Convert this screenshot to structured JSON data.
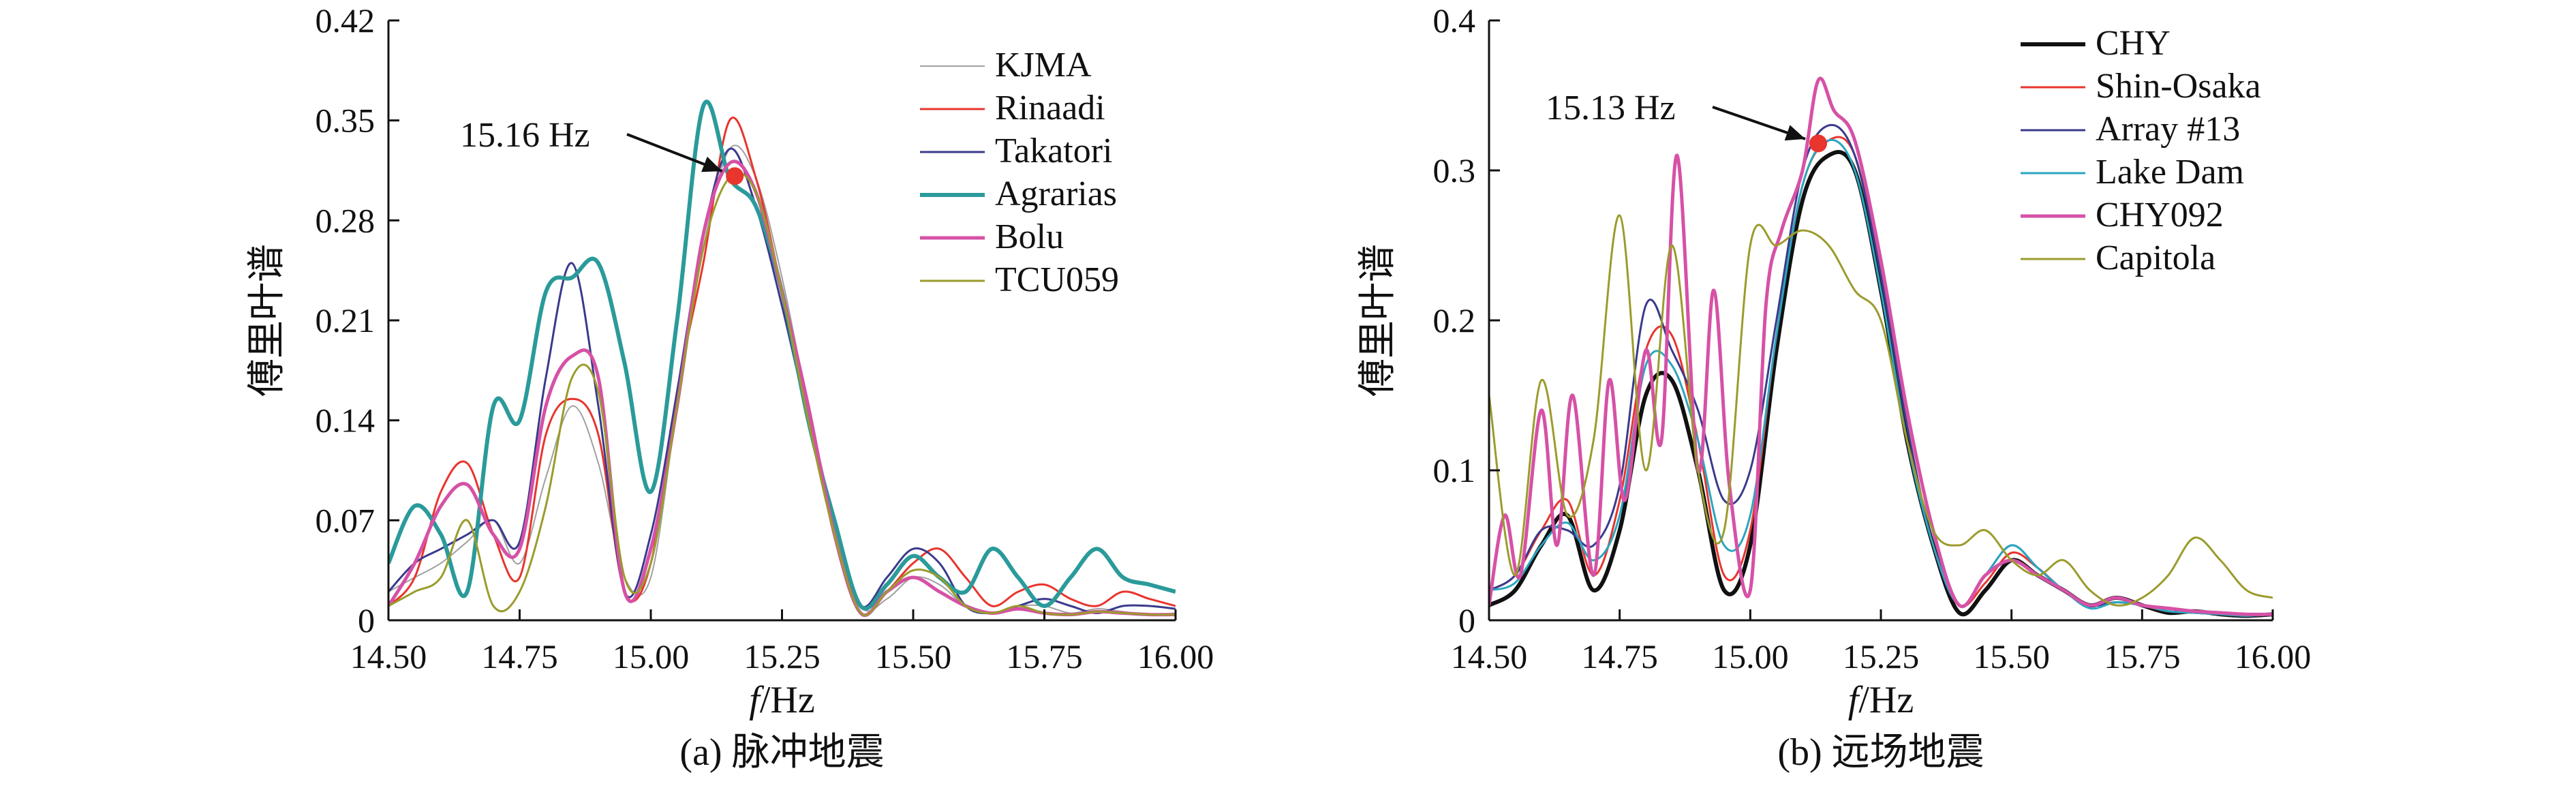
{
  "chart_data": [
    {
      "type": "line",
      "caption": "(a) 脉冲地震",
      "xlabel_italic": "f",
      "xlabel_unit": "/Hz",
      "ylabel": "傅里叶谱",
      "xlim": [
        14.5,
        16.0
      ],
      "ylim": [
        0,
        0.42
      ],
      "xticks": [
        "14.50",
        "14.75",
        "15.00",
        "15.25",
        "15.50",
        "15.75",
        "16.00"
      ],
      "yticks": [
        "0",
        "0.07",
        "0.14",
        "0.21",
        "0.28",
        "0.35",
        "0.42"
      ],
      "legend_position": "top-right",
      "annotation": {
        "text": "15.16 Hz",
        "x": 15.16,
        "y": 0.311
      },
      "series": [
        {
          "name": "KJMA",
          "color": "#a0a0a0",
          "width": 2,
          "x": [
            14.5,
            14.55,
            14.6,
            14.65,
            14.7,
            14.75,
            14.8,
            14.85,
            14.9,
            14.95,
            15.0,
            15.05,
            15.1,
            15.15,
            15.2,
            15.25,
            15.3,
            15.35,
            15.4,
            15.45,
            15.5,
            15.55,
            15.6,
            15.65,
            15.7,
            15.75,
            15.8,
            15.85,
            15.9,
            15.95,
            16.0
          ],
          "y": [
            0.02,
            0.03,
            0.04,
            0.055,
            0.07,
            0.04,
            0.1,
            0.15,
            0.11,
            0.03,
            0.03,
            0.15,
            0.26,
            0.33,
            0.31,
            0.24,
            0.15,
            0.07,
            0.01,
            0.015,
            0.03,
            0.025,
            0.01,
            0.005,
            0.01,
            0.01,
            0.005,
            0.008,
            0.006,
            0.004,
            0.005
          ]
        },
        {
          "name": "Rinaadi",
          "color": "#e8352e",
          "width": 3,
          "x": [
            14.5,
            14.55,
            14.6,
            14.65,
            14.7,
            14.75,
            14.8,
            14.85,
            14.9,
            14.95,
            15.0,
            15.05,
            15.1,
            15.15,
            15.2,
            15.25,
            15.3,
            15.35,
            15.4,
            15.45,
            15.5,
            15.55,
            15.6,
            15.65,
            15.7,
            15.75,
            15.8,
            15.85,
            15.9,
            15.95,
            16.0
          ],
          "y": [
            0.01,
            0.03,
            0.09,
            0.11,
            0.06,
            0.03,
            0.13,
            0.155,
            0.13,
            0.02,
            0.04,
            0.16,
            0.25,
            0.35,
            0.31,
            0.23,
            0.14,
            0.06,
            0.005,
            0.02,
            0.04,
            0.05,
            0.03,
            0.01,
            0.02,
            0.025,
            0.015,
            0.01,
            0.02,
            0.015,
            0.01
          ]
        },
        {
          "name": "Takatori",
          "color": "#3a3a8c",
          "width": 3,
          "x": [
            14.5,
            14.55,
            14.6,
            14.65,
            14.7,
            14.75,
            14.8,
            14.85,
            14.9,
            14.95,
            15.0,
            15.05,
            15.1,
            15.15,
            15.2,
            15.25,
            15.3,
            15.35,
            15.4,
            15.45,
            15.5,
            15.55,
            15.6,
            15.65,
            15.7,
            15.75,
            15.8,
            15.85,
            15.9,
            15.95,
            16.0
          ],
          "y": [
            0.02,
            0.04,
            0.05,
            0.06,
            0.07,
            0.055,
            0.17,
            0.25,
            0.15,
            0.02,
            0.06,
            0.16,
            0.27,
            0.33,
            0.29,
            0.22,
            0.14,
            0.06,
            0.01,
            0.03,
            0.05,
            0.04,
            0.01,
            0.005,
            0.01,
            0.015,
            0.01,
            0.005,
            0.01,
            0.01,
            0.008
          ]
        },
        {
          "name": "Agrarias",
          "color": "#2b9a9a",
          "width": 6,
          "x": [
            14.5,
            14.55,
            14.6,
            14.65,
            14.7,
            14.75,
            14.8,
            14.85,
            14.9,
            14.95,
            15.0,
            15.05,
            15.1,
            15.15,
            15.2,
            15.25,
            15.3,
            15.35,
            15.4,
            15.45,
            15.5,
            15.55,
            15.6,
            15.65,
            15.7,
            15.75,
            15.8,
            15.85,
            15.9,
            15.95,
            16.0
          ],
          "y": [
            0.04,
            0.08,
            0.06,
            0.02,
            0.15,
            0.14,
            0.23,
            0.24,
            0.25,
            0.18,
            0.09,
            0.21,
            0.36,
            0.31,
            0.29,
            0.23,
            0.14,
            0.07,
            0.01,
            0.025,
            0.045,
            0.03,
            0.02,
            0.05,
            0.03,
            0.01,
            0.03,
            0.05,
            0.03,
            0.025,
            0.02
          ]
        },
        {
          "name": "Bolu",
          "color": "#d651a6",
          "width": 5,
          "x": [
            14.5,
            14.55,
            14.6,
            14.65,
            14.7,
            14.75,
            14.8,
            14.85,
            14.9,
            14.95,
            15.0,
            15.05,
            15.1,
            15.15,
            15.2,
            15.25,
            15.3,
            15.35,
            15.4,
            15.45,
            15.5,
            15.55,
            15.6,
            15.65,
            15.7,
            15.75,
            15.8,
            15.85,
            15.9,
            15.95,
            16.0
          ],
          "y": [
            0.01,
            0.04,
            0.08,
            0.095,
            0.06,
            0.05,
            0.15,
            0.185,
            0.17,
            0.02,
            0.05,
            0.15,
            0.27,
            0.32,
            0.3,
            0.23,
            0.15,
            0.06,
            0.005,
            0.02,
            0.03,
            0.02,
            0.01,
            0.005,
            0.008,
            0.005,
            0.004,
            0.006,
            0.005,
            0.004,
            0.004
          ]
        },
        {
          "name": "TCU059",
          "color": "#9b9b2c",
          "width": 3,
          "x": [
            14.5,
            14.55,
            14.6,
            14.65,
            14.7,
            14.75,
            14.8,
            14.85,
            14.9,
            14.95,
            15.0,
            15.05,
            15.1,
            15.15,
            15.2,
            15.25,
            15.3,
            15.35,
            15.4,
            15.45,
            15.5,
            15.55,
            15.6,
            15.65,
            15.7,
            15.75,
            15.8,
            15.85,
            15.9,
            15.95,
            16.0
          ],
          "y": [
            0.01,
            0.02,
            0.03,
            0.07,
            0.01,
            0.02,
            0.08,
            0.17,
            0.16,
            0.03,
            0.04,
            0.15,
            0.26,
            0.31,
            0.3,
            0.23,
            0.14,
            0.06,
            0.005,
            0.02,
            0.035,
            0.03,
            0.01,
            0.005,
            0.01,
            0.005,
            0.004,
            0.006,
            0.005,
            0.004,
            0.004
          ]
        }
      ]
    },
    {
      "type": "line",
      "caption": "(b) 远场地震",
      "xlabel_italic": "f",
      "xlabel_unit": "/Hz",
      "ylabel": "傅里叶谱",
      "xlim": [
        14.5,
        16.0
      ],
      "ylim": [
        0,
        0.4
      ],
      "xticks": [
        "14.50",
        "14.75",
        "15.00",
        "15.25",
        "15.50",
        "15.75",
        "16.00"
      ],
      "yticks": [
        "0",
        "0.1",
        "0.2",
        "0.3",
        "0.4"
      ],
      "legend_position": "top-right",
      "annotation": {
        "text": "15.13 Hz",
        "x": 15.13,
        "y": 0.318
      },
      "series": [
        {
          "name": "CHY",
          "color": "#111111",
          "width": 6,
          "x": [
            14.5,
            14.55,
            14.6,
            14.65,
            14.7,
            14.75,
            14.8,
            14.85,
            14.9,
            14.95,
            15.0,
            15.05,
            15.1,
            15.15,
            15.2,
            15.25,
            15.3,
            15.35,
            15.4,
            15.45,
            15.5,
            15.55,
            15.6,
            15.65,
            15.7,
            15.75,
            15.8,
            15.85,
            15.9,
            15.95,
            16.0
          ],
          "y": [
            0.01,
            0.02,
            0.05,
            0.07,
            0.02,
            0.06,
            0.15,
            0.16,
            0.1,
            0.02,
            0.05,
            0.18,
            0.28,
            0.31,
            0.3,
            0.22,
            0.12,
            0.05,
            0.005,
            0.02,
            0.04,
            0.03,
            0.02,
            0.01,
            0.015,
            0.01,
            0.005,
            0.006,
            0.004,
            0.003,
            0.004
          ]
        },
        {
          "name": "Shin-Osaka",
          "color": "#e8352e",
          "width": 3,
          "x": [
            14.5,
            14.55,
            14.6,
            14.65,
            14.7,
            14.75,
            14.8,
            14.85,
            14.9,
            14.95,
            15.0,
            15.05,
            15.1,
            15.15,
            15.2,
            15.25,
            15.3,
            15.35,
            15.4,
            15.45,
            15.5,
            15.55,
            15.6,
            15.65,
            15.7,
            15.75,
            15.8,
            15.85,
            15.9,
            15.95,
            16.0
          ],
          "y": [
            0.02,
            0.03,
            0.06,
            0.08,
            0.03,
            0.08,
            0.18,
            0.19,
            0.12,
            0.03,
            0.06,
            0.19,
            0.29,
            0.32,
            0.31,
            0.23,
            0.13,
            0.05,
            0.01,
            0.025,
            0.045,
            0.035,
            0.02,
            0.01,
            0.015,
            0.01,
            0.006,
            0.005,
            0.004,
            0.003,
            0.004
          ]
        },
        {
          "name": "Array #13",
          "color": "#3a3a8c",
          "width": 3,
          "x": [
            14.5,
            14.55,
            14.6,
            14.65,
            14.7,
            14.75,
            14.8,
            14.85,
            14.9,
            14.95,
            15.0,
            15.05,
            15.1,
            15.15,
            15.2,
            15.25,
            15.3,
            15.35,
            15.4,
            15.45,
            15.5,
            15.55,
            15.6,
            15.65,
            15.7,
            15.75,
            15.8,
            15.85,
            15.9,
            15.95,
            16.0
          ],
          "y": [
            0.02,
            0.03,
            0.06,
            0.06,
            0.05,
            0.09,
            0.21,
            0.18,
            0.14,
            0.08,
            0.1,
            0.2,
            0.3,
            0.33,
            0.31,
            0.23,
            0.13,
            0.05,
            0.01,
            0.03,
            0.05,
            0.035,
            0.02,
            0.01,
            0.012,
            0.01,
            0.006,
            0.005,
            0.004,
            0.003,
            0.004
          ]
        },
        {
          "name": "Lake Dam",
          "color": "#2aa6c0",
          "width": 3,
          "x": [
            14.5,
            14.55,
            14.6,
            14.65,
            14.7,
            14.75,
            14.8,
            14.85,
            14.9,
            14.95,
            15.0,
            15.05,
            15.1,
            15.15,
            15.2,
            15.25,
            15.3,
            15.35,
            15.4,
            15.45,
            15.5,
            15.55,
            15.6,
            15.65,
            15.7,
            15.75,
            15.8,
            15.85,
            15.9,
            15.95,
            16.0
          ],
          "y": [
            0.02,
            0.025,
            0.05,
            0.065,
            0.04,
            0.07,
            0.17,
            0.17,
            0.12,
            0.05,
            0.07,
            0.19,
            0.29,
            0.32,
            0.3,
            0.22,
            0.12,
            0.05,
            0.01,
            0.03,
            0.05,
            0.035,
            0.02,
            0.008,
            0.012,
            0.01,
            0.006,
            0.005,
            0.004,
            0.003,
            0.004
          ]
        },
        {
          "name": "CHY092",
          "color": "#d651a6",
          "width": 5,
          "x": [
            14.5,
            14.53,
            14.56,
            14.6,
            14.63,
            14.66,
            14.7,
            14.73,
            14.76,
            14.8,
            14.83,
            14.86,
            14.9,
            14.93,
            14.96,
            15.0,
            15.03,
            15.06,
            15.1,
            15.13,
            15.16,
            15.2,
            15.25,
            15.3,
            15.35,
            15.4,
            15.45,
            15.5,
            15.55,
            15.6,
            15.65,
            15.7,
            15.75,
            15.8,
            15.85,
            15.9,
            15.95,
            16.0
          ],
          "y": [
            0.01,
            0.07,
            0.03,
            0.14,
            0.05,
            0.15,
            0.03,
            0.16,
            0.08,
            0.18,
            0.12,
            0.31,
            0.1,
            0.22,
            0.09,
            0.02,
            0.21,
            0.26,
            0.3,
            0.36,
            0.34,
            0.32,
            0.24,
            0.14,
            0.06,
            0.01,
            0.03,
            0.04,
            0.03,
            0.02,
            0.01,
            0.015,
            0.01,
            0.008,
            0.006,
            0.005,
            0.004,
            0.004
          ]
        },
        {
          "name": "Capitola",
          "color": "#9b9b2c",
          "width": 3,
          "x": [
            14.5,
            14.55,
            14.6,
            14.65,
            14.7,
            14.75,
            14.8,
            14.85,
            14.9,
            14.95,
            15.0,
            15.05,
            15.1,
            15.15,
            15.2,
            15.25,
            15.3,
            15.35,
            15.4,
            15.45,
            15.5,
            15.55,
            15.6,
            15.65,
            15.7,
            15.75,
            15.8,
            15.85,
            15.9,
            15.95,
            16.0
          ],
          "y": [
            0.15,
            0.03,
            0.16,
            0.07,
            0.12,
            0.27,
            0.1,
            0.25,
            0.1,
            0.06,
            0.25,
            0.25,
            0.26,
            0.25,
            0.22,
            0.2,
            0.12,
            0.06,
            0.05,
            0.06,
            0.04,
            0.03,
            0.04,
            0.02,
            0.01,
            0.015,
            0.03,
            0.055,
            0.04,
            0.02,
            0.015
          ]
        }
      ]
    }
  ]
}
